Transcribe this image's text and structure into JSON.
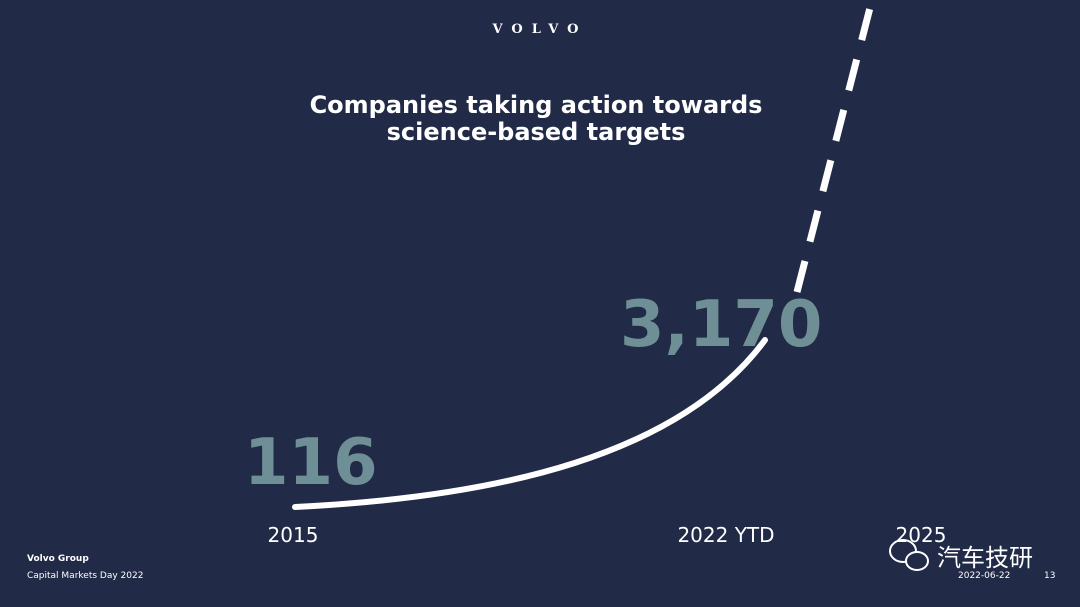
{
  "header": {
    "logo": "VOLVO"
  },
  "title": {
    "lines": [
      "Companies taking action towards",
      "science-based targets"
    ]
  },
  "points": [
    {
      "label": "116",
      "year": "2015"
    },
    {
      "label": "3,170",
      "year": "2022 YTD"
    },
    {
      "year": "2025"
    }
  ],
  "footer": {
    "company": "Volvo Group",
    "event": "Capital Markets Day 2022",
    "date": "2022-06-22",
    "page": "13"
  },
  "watermark": "汽车技研"
}
